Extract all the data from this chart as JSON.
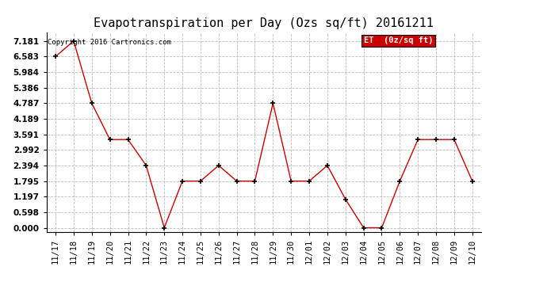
{
  "title": "Evapotranspiration per Day (Ozs sq/ft) 20161211",
  "copyright": "Copyright 2016 Cartronics.com",
  "legend_label": "ET  (0z/sq ft)",
  "x_labels": [
    "11/17",
    "11/18",
    "11/19",
    "11/20",
    "11/21",
    "11/22",
    "11/23",
    "11/24",
    "11/25",
    "11/26",
    "11/27",
    "11/28",
    "11/29",
    "11/30",
    "12/01",
    "12/02",
    "12/03",
    "12/04",
    "12/05",
    "12/06",
    "12/07",
    "12/08",
    "12/09",
    "12/10"
  ],
  "y_values": [
    6.583,
    7.181,
    4.787,
    3.391,
    3.391,
    2.394,
    0.0,
    1.795,
    1.795,
    2.394,
    1.795,
    1.795,
    4.787,
    1.795,
    1.795,
    2.394,
    1.097,
    0.0,
    0.0,
    1.795,
    3.391,
    3.391,
    3.391,
    1.795
  ],
  "yticks": [
    0.0,
    0.598,
    1.197,
    1.795,
    2.394,
    2.992,
    3.591,
    4.189,
    4.787,
    5.386,
    5.984,
    6.583,
    7.181
  ],
  "line_color": "#cc0000",
  "marker_color": "#000000",
  "legend_bg": "#cc0000",
  "legend_text_color": "#ffffff",
  "background_color": "#ffffff",
  "grid_color": "#bbbbbb",
  "title_fontsize": 11,
  "axis_fontsize": 7.5,
  "copyright_fontsize": 6.5
}
